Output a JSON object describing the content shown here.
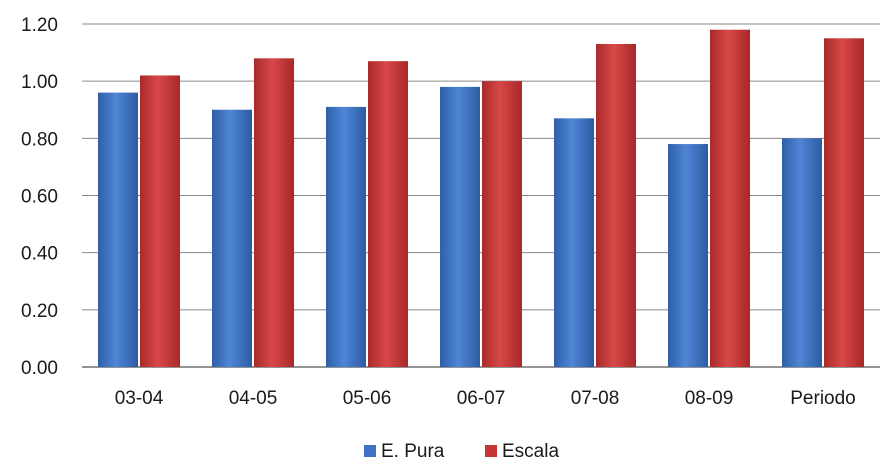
{
  "chart_data": {
    "type": "bar",
    "categories": [
      "03-04",
      "04-05",
      "05-06",
      "06-07",
      "07-08",
      "08-09",
      "Periodo"
    ],
    "series": [
      {
        "name": "E. Pura",
        "values": [
          0.96,
          0.9,
          0.91,
          0.98,
          0.87,
          0.78,
          0.8
        ],
        "color": "#3d72c4"
      },
      {
        "name": "Escala",
        "values": [
          1.02,
          1.08,
          1.07,
          1.0,
          1.13,
          1.18,
          1.15
        ],
        "color": "#c43636"
      }
    ],
    "yticks": [
      "0.00",
      "0.20",
      "0.40",
      "0.60",
      "0.80",
      "1.00",
      "1.20"
    ],
    "ylim": [
      0,
      1.2
    ],
    "grid": true,
    "legend_position": "bottom"
  }
}
